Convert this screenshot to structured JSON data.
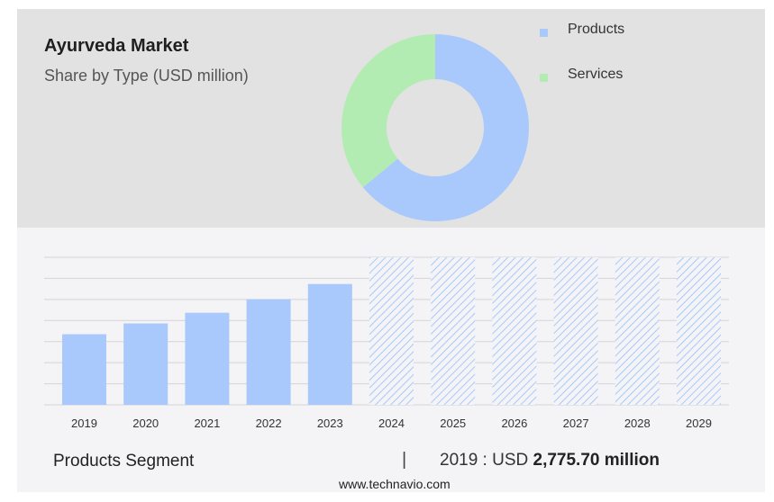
{
  "header": {
    "title": "Ayurveda Market",
    "subtitle": "Share by Type (USD million)"
  },
  "legend": [
    {
      "label": "Products",
      "color": "#a9c8fb"
    },
    {
      "label": "Services",
      "color": "#b3ecb2"
    }
  ],
  "footer": {
    "segment_label": "Products Segment",
    "divider": "|",
    "stat_prefix": "2019 : USD",
    "stat_value": "2,775.70 million",
    "website": "www.technavio.com"
  },
  "colors": {
    "products": "#a9c8fb",
    "services": "#b3ecb2",
    "forecast_hatch": "#a9c8fb",
    "grid": "#d4d4d8"
  },
  "chart_data": [
    {
      "type": "pie",
      "style": "donut",
      "categories": [
        "Products",
        "Services"
      ],
      "values": [
        64,
        36
      ],
      "title": "Share by Type (USD million)"
    },
    {
      "type": "bar",
      "categories": [
        "2019",
        "2020",
        "2021",
        "2022",
        "2023",
        "2024",
        "2025",
        "2026",
        "2027",
        "2028",
        "2029"
      ],
      "values": [
        2775.7,
        3200,
        3620,
        4150,
        4750,
        null,
        null,
        null,
        null,
        null,
        null
      ],
      "forecast_categories": [
        "2024",
        "2025",
        "2026",
        "2027",
        "2028",
        "2029"
      ],
      "ylim": [
        0,
        5800
      ],
      "grid": true,
      "xlabel": "",
      "ylabel": ""
    }
  ]
}
